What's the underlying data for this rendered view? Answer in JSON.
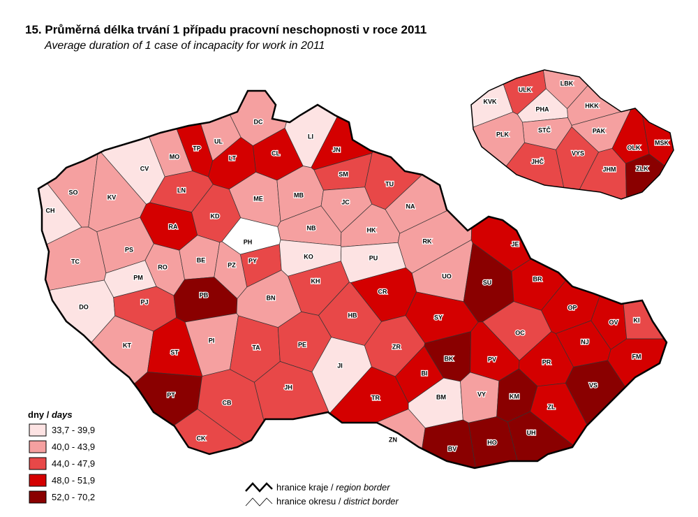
{
  "title": "15. Průměrná délka trvání 1 případu pracovní neschopnosti v roce 2011",
  "subtitle": "Average duration of 1 case of incapacity for work in 2011",
  "legend": {
    "title": "dny / ",
    "title_en": "days",
    "items": [
      {
        "label": "33,7 - 39,9",
        "color": "#fde3e3"
      },
      {
        "label": "40,0 - 43,9",
        "color": "#f5a0a0"
      },
      {
        "label": "44,0 - 47,9",
        "color": "#e84848"
      },
      {
        "label": "48,0 - 51,9",
        "color": "#d40000"
      },
      {
        "label": "52,0 - 70,2",
        "color": "#8a0000"
      }
    ],
    "borders": [
      {
        "label": "hranice kraje / ",
        "label_en": "region border"
      },
      {
        "label": "hranice okresu / ",
        "label_en": "district border"
      }
    ]
  },
  "districts": [
    {
      "label": "CH",
      "color": "#fde3e3"
    },
    {
      "label": "SO",
      "color": "#f5a0a0"
    },
    {
      "label": "KV",
      "color": "#f5a0a0"
    },
    {
      "label": "CV",
      "color": "#fde3e3"
    },
    {
      "label": "MO",
      "color": "#f5a0a0"
    },
    {
      "label": "TP",
      "color": "#d40000"
    },
    {
      "label": "UL",
      "color": "#f5a0a0"
    },
    {
      "label": "DC",
      "color": "#f5a0a0"
    },
    {
      "label": "CL",
      "color": "#d40000"
    },
    {
      "label": "LI",
      "color": "#fde3e3"
    },
    {
      "label": "JN",
      "color": "#d40000"
    },
    {
      "label": "SM",
      "color": "#e84848"
    },
    {
      "label": "LT",
      "color": "#d40000"
    },
    {
      "label": "LN",
      "color": "#e84848"
    },
    {
      "label": "ME",
      "color": "#f5a0a0"
    },
    {
      "label": "MB",
      "color": "#f5a0a0"
    },
    {
      "label": "TU",
      "color": "#e84848"
    },
    {
      "label": "JC",
      "color": "#f5a0a0"
    },
    {
      "label": "NA",
      "color": "#f5a0a0"
    },
    {
      "label": "RA",
      "color": "#d40000"
    },
    {
      "label": "KD",
      "color": "#e84848"
    },
    {
      "label": "NB",
      "color": "#f5a0a0"
    },
    {
      "label": "HK",
      "color": "#f5a0a0"
    },
    {
      "label": "RK",
      "color": "#f5a0a0"
    },
    {
      "label": "PH",
      "color": "#ffffff"
    },
    {
      "label": "TC",
      "color": "#f5a0a0"
    },
    {
      "label": "PS",
      "color": "#f5a0a0"
    },
    {
      "label": "RO",
      "color": "#f5a0a0"
    },
    {
      "label": "PM",
      "color": "#fde3e3"
    },
    {
      "label": "BE",
      "color": "#f5a0a0"
    },
    {
      "label": "PZ",
      "color": "#f5a0a0"
    },
    {
      "label": "PY",
      "color": "#e84848"
    },
    {
      "label": "KO",
      "color": "#fde3e3"
    },
    {
      "label": "PU",
      "color": "#fde3e3"
    },
    {
      "label": "JE",
      "color": "#d40000"
    },
    {
      "label": "UO",
      "color": "#f5a0a0"
    },
    {
      "label": "SU",
      "color": "#8a0000"
    },
    {
      "label": "BR",
      "color": "#d40000"
    },
    {
      "label": "DO",
      "color": "#fde3e3"
    },
    {
      "label": "PJ",
      "color": "#e84848"
    },
    {
      "label": "PB",
      "color": "#8a0000"
    },
    {
      "label": "BN",
      "color": "#f5a0a0"
    },
    {
      "label": "KH",
      "color": "#e84848"
    },
    {
      "label": "CR",
      "color": "#d40000"
    },
    {
      "label": "HB",
      "color": "#e84848"
    },
    {
      "label": "SY",
      "color": "#d40000"
    },
    {
      "label": "OP",
      "color": "#d40000"
    },
    {
      "label": "OV",
      "color": "#d40000"
    },
    {
      "label": "KI",
      "color": "#e84848"
    },
    {
      "label": "OC",
      "color": "#e84848"
    },
    {
      "label": "NJ",
      "color": "#d40000"
    },
    {
      "label": "KT",
      "color": "#f5a0a0"
    },
    {
      "label": "ST",
      "color": "#d40000"
    },
    {
      "label": "PI",
      "color": "#f5a0a0"
    },
    {
      "label": "TA",
      "color": "#e84848"
    },
    {
      "label": "PE",
      "color": "#e84848"
    },
    {
      "label": "ZR",
      "color": "#e84848"
    },
    {
      "label": "BK",
      "color": "#8a0000"
    },
    {
      "label": "PV",
      "color": "#d40000"
    },
    {
      "label": "FM",
      "color": "#d40000"
    },
    {
      "label": "JI",
      "color": "#fde3e3"
    },
    {
      "label": "BI",
      "color": "#d40000"
    },
    {
      "label": "PR",
      "color": "#d40000"
    },
    {
      "label": "VS",
      "color": "#8a0000"
    },
    {
      "label": "PT",
      "color": "#8a0000"
    },
    {
      "label": "JH",
      "color": "#e84848"
    },
    {
      "label": "TR",
      "color": "#d40000"
    },
    {
      "label": "BM",
      "color": "#fde3e3"
    },
    {
      "label": "VY",
      "color": "#f5a0a0"
    },
    {
      "label": "KM",
      "color": "#8a0000"
    },
    {
      "label": "ZL",
      "color": "#d40000"
    },
    {
      "label": "CB",
      "color": "#e84848"
    },
    {
      "label": "UH",
      "color": "#8a0000"
    },
    {
      "label": "CK",
      "color": "#e84848"
    },
    {
      "label": "ZN",
      "color": "#f5a0a0"
    },
    {
      "label": "BV",
      "color": "#8a0000"
    },
    {
      "label": "HO",
      "color": "#8a0000"
    }
  ],
  "regions": [
    {
      "label": "KVK",
      "color": "#fde3e3"
    },
    {
      "label": "ULK",
      "color": "#e84848"
    },
    {
      "label": "LBK",
      "color": "#f5a0a0"
    },
    {
      "label": "HKK",
      "color": "#f5a0a0"
    },
    {
      "label": "PHA",
      "color": "#fde3e3"
    },
    {
      "label": "STČ",
      "color": "#f5a0a0"
    },
    {
      "label": "PLK",
      "color": "#f5a0a0"
    },
    {
      "label": "PAK",
      "color": "#f5a0a0"
    },
    {
      "label": "OLK",
      "color": "#d40000"
    },
    {
      "label": "MSK",
      "color": "#d40000"
    },
    {
      "label": "JHČ",
      "color": "#e84848"
    },
    {
      "label": "VYS",
      "color": "#e84848"
    },
    {
      "label": "JHM",
      "color": "#e84848"
    },
    {
      "label": "ZLK",
      "color": "#8a0000"
    }
  ]
}
